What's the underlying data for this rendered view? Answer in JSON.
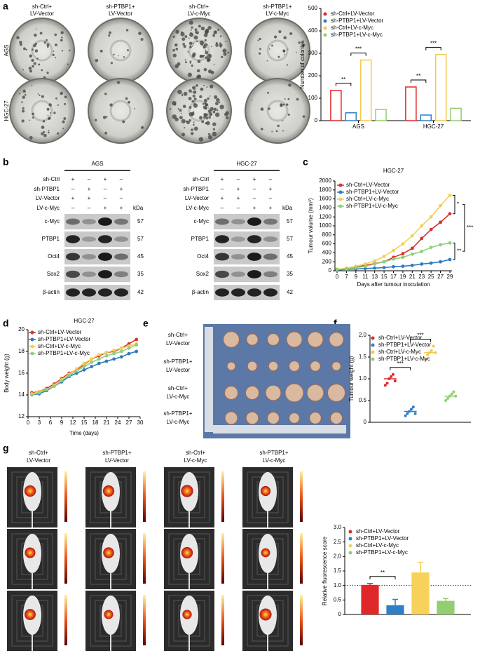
{
  "panel_labels": [
    "a",
    "b",
    "c",
    "d",
    "e",
    "f",
    "g"
  ],
  "colony": {
    "columns": [
      [
        "sh-Ctrl+",
        "LV-Vector"
      ],
      [
        "sh-PTBP1+",
        "LV-Vector"
      ],
      [
        "sh-Ctrl+",
        "LV-c-Myc"
      ],
      [
        "sh-PTBP1+",
        "LV-c-Myc"
      ]
    ],
    "rows": [
      "AGS",
      "HGC-27"
    ]
  },
  "blot": {
    "groups": [
      {
        "title": "AGS",
        "conditions": [
          {
            "label": "sh-Ctrl",
            "marks": [
              "+",
              "–",
              "+",
              "–"
            ]
          },
          {
            "label": "sh-PTBP1",
            "marks": [
              "–",
              "+",
              "–",
              "+"
            ]
          },
          {
            "label": "LV-Vector",
            "marks": [
              "+",
              "+",
              "–",
              "–"
            ]
          },
          {
            "label": "LV-c-Myc",
            "marks": [
              "–",
              "–",
              "+",
              "+"
            ]
          }
        ],
        "kda_header": "kDa",
        "proteins": [
          {
            "name": "c-Myc",
            "kda": 57
          },
          {
            "name": "PTBP1",
            "kda": 57
          },
          {
            "name": "Oct4",
            "kda": 45
          },
          {
            "name": "Sox2",
            "kda": 35
          },
          {
            "name": "β-actin",
            "kda": 42
          }
        ]
      },
      {
        "title": "HGC-27",
        "conditions": [
          {
            "label": "sh-Ctrl",
            "marks": [
              "+",
              "–",
              "+",
              "–"
            ]
          },
          {
            "label": "sh-PTBP1",
            "marks": [
              "–",
              "+",
              "–",
              "+"
            ]
          },
          {
            "label": "LV-Vector",
            "marks": [
              "+",
              "+",
              "–",
              "–"
            ]
          },
          {
            "label": "LV-c-Myc",
            "marks": [
              "–",
              "–",
              "+",
              "+"
            ]
          }
        ],
        "kda_header": "kDa",
        "proteins": [
          {
            "name": "c-Myc",
            "kda": 57
          },
          {
            "name": "PTBP1",
            "kda": 57
          },
          {
            "name": "Oct4",
            "kda": 45
          },
          {
            "name": "Sox2",
            "kda": 35
          },
          {
            "name": "β-actin",
            "kda": 42
          }
        ]
      }
    ]
  },
  "tumour_photo": {
    "labels": [
      [
        "sh-Ctrl+",
        "LV-Vector"
      ],
      [
        "sh-PTBP1+",
        "LV-Vector"
      ],
      [
        "sh-Ctrl+",
        "LV-c-Myc"
      ],
      [
        "sh-PTBP1+",
        "LV-c-Myc"
      ]
    ]
  },
  "imaging": {
    "columns": [
      [
        "sh-Ctrl+",
        "LV-Vector"
      ],
      [
        "sh-PTBP1+",
        "LV-Vector"
      ],
      [
        "sh-Ctrl+",
        "LV-c-Myc"
      ],
      [
        "sh-PTBP1+",
        "LV-c-Myc"
      ]
    ]
  },
  "chart_data": [
    {
      "type": "bar",
      "ylabel": "Number of colonies",
      "categories": [
        "AGS",
        "HGC-27"
      ],
      "series": [
        {
          "name": "sh-Ctrl+LV-Vector",
          "color": "#e0282a",
          "values": [
            135,
            150
          ]
        },
        {
          "name": "sh-PTBP1+LV-Vector",
          "color": "#2e7fc8",
          "values": [
            35,
            25
          ]
        },
        {
          "name": "sh-Ctrl+LV-c-Myc",
          "color": "#f2c94c",
          "values": [
            270,
            295
          ]
        },
        {
          "name": "sh-PTBP1+LV-c-Myc",
          "color": "#8fcf6f",
          "values": [
            50,
            55
          ]
        }
      ],
      "ylim": [
        0,
        500
      ],
      "yticks": [
        0,
        100,
        200,
        300,
        400,
        500
      ],
      "annotations": [
        "**",
        "***",
        "**",
        "***"
      ]
    },
    {
      "type": "line",
      "title": "HGC-27",
      "xlabel": "Days after tumour inoculation",
      "ylabel": "Tumour volume (mm³)",
      "categories": [
        "0",
        "7",
        "9",
        "11",
        "13",
        "15",
        "17",
        "19",
        "21",
        "23",
        "25",
        "27",
        "29"
      ],
      "series": [
        {
          "name": "sh-Ctrl+LV-Vector",
          "color": "#d93030",
          "values": [
            30,
            50,
            80,
            120,
            160,
            200,
            300,
            380,
            500,
            720,
            920,
            1080,
            1270
          ]
        },
        {
          "name": "sh-PTBP1+LV-Vector",
          "color": "#2f7ac0",
          "values": [
            20,
            30,
            40,
            50,
            60,
            70,
            90,
            100,
            120,
            150,
            170,
            200,
            250
          ]
        },
        {
          "name": "sh-Ctrl+LV-c-Myc",
          "color": "#f5cf55",
          "values": [
            30,
            60,
            100,
            150,
            220,
            320,
            450,
            600,
            780,
            1000,
            1200,
            1450,
            1680
          ]
        },
        {
          "name": "sh-PTBP1+LV-c-Myc",
          "color": "#8fd07a",
          "values": [
            30,
            40,
            70,
            100,
            150,
            200,
            260,
            300,
            370,
            430,
            520,
            580,
            620
          ]
        }
      ],
      "ylim": [
        0,
        2000
      ],
      "yticks": [
        0,
        200,
        400,
        600,
        800,
        1000,
        1200,
        1400,
        1600,
        1800,
        2000
      ],
      "annotations": [
        "*",
        "**",
        "***"
      ]
    },
    {
      "type": "line",
      "title": "HGC-27",
      "xlabel": "Time (days)",
      "ylabel": "Body weight (g)",
      "x": [
        1,
        3,
        5,
        7,
        9,
        11,
        13,
        15,
        17,
        19,
        21,
        23,
        25,
        27,
        29
      ],
      "xlim": [
        0,
        30
      ],
      "xticks": [
        0,
        3,
        6,
        9,
        12,
        15,
        18,
        21,
        24,
        27,
        30
      ],
      "series": [
        {
          "name": "sh-Ctrl+LV-Vector",
          "color": "#d93030",
          "values": [
            14.2,
            14.3,
            14.6,
            15.0,
            15.5,
            16.0,
            16.3,
            16.8,
            17.3,
            17.6,
            17.9,
            18.0,
            18.3,
            18.7,
            19.1
          ]
        },
        {
          "name": "sh-PTBP1+LV-Vector",
          "color": "#2f7ac0",
          "values": [
            14.0,
            14.1,
            14.4,
            14.8,
            15.2,
            15.7,
            16.0,
            16.3,
            16.6,
            16.9,
            17.1,
            17.3,
            17.5,
            17.8,
            18.0
          ]
        },
        {
          "name": "sh-Ctrl+LV-c-Myc",
          "color": "#f5cf55",
          "values": [
            14.1,
            14.3,
            14.5,
            14.9,
            15.4,
            15.9,
            16.4,
            16.9,
            17.3,
            17.7,
            17.9,
            18.1,
            18.3,
            18.5,
            18.7
          ]
        },
        {
          "name": "sh-PTBP1+LV-c-Myc",
          "color": "#8fd07a",
          "values": [
            14.0,
            14.2,
            14.5,
            14.8,
            15.3,
            15.8,
            16.2,
            16.6,
            17.0,
            17.3,
            17.6,
            17.8,
            18.0,
            18.3,
            18.6
          ]
        }
      ],
      "ylim": [
        12,
        20
      ],
      "yticks": [
        12,
        14,
        16,
        18,
        20
      ]
    },
    {
      "type": "strip",
      "ylabel": "Tumour weight (g)",
      "categories": [
        null
      ],
      "series": [
        {
          "name": "sh-Ctrl+LV-Vector",
          "color": "#e0282a",
          "values": [
            1.0
          ],
          "points": [
            0.85,
            0.9,
            1.0,
            1.05,
            1.1,
            0.95
          ]
        },
        {
          "name": "sh-PTBP1+LV-Vector",
          "color": "#2e7fc8",
          "values": [
            0.25
          ],
          "points": [
            0.15,
            0.2,
            0.25,
            0.3,
            0.35,
            0.2
          ]
        },
        {
          "name": "sh-Ctrl+LV-c-Myc",
          "color": "#f2c94c",
          "values": [
            1.6
          ],
          "points": [
            1.45,
            1.55,
            1.6,
            1.65,
            1.75,
            1.6
          ]
        },
        {
          "name": "sh-PTBP1+LV-c-Myc",
          "color": "#8fcf6f",
          "values": [
            0.6
          ],
          "points": [
            0.5,
            0.55,
            0.6,
            0.65,
            0.7,
            0.6
          ]
        }
      ],
      "ylim": [
        0,
        2
      ],
      "yticks": [
        0,
        0.5,
        {
          "value": 1,
          "label": "1.0"
        },
        1.5,
        {
          "value": 2,
          "label": "2.0"
        }
      ],
      "annotations": [
        "***",
        "***"
      ]
    },
    {
      "type": "bar",
      "ylabel": "Relative fluorescence score",
      "categories": [
        null
      ],
      "solid": true,
      "reference_line": 1,
      "series": [
        {
          "name": "sh-Ctrl+LV-Vector",
          "color": "#e0282a",
          "values": [
            1.02
          ],
          "errors": [
            0.05
          ]
        },
        {
          "name": "sh-PTBP1+LV-Vector",
          "color": "#2e7fc8",
          "values": [
            0.32
          ],
          "errors": [
            0.2
          ]
        },
        {
          "name": "sh-Ctrl+LV-c-Myc",
          "color": "#f7d15a",
          "values": [
            1.45
          ],
          "errors": [
            0.35
          ]
        },
        {
          "name": "sh-PTBP1+LV-c-Myc",
          "color": "#93cf72",
          "values": [
            0.47
          ],
          "errors": [
            0.08
          ]
        }
      ],
      "ylim": [
        0,
        3
      ],
      "yticks": [
        0,
        0.5,
        {
          "value": 1,
          "label": "1.0"
        },
        1.5,
        {
          "value": 2,
          "label": "2.0"
        },
        2.5,
        {
          "value": 3,
          "label": "3.0"
        }
      ],
      "annotations": [
        "**"
      ]
    }
  ]
}
